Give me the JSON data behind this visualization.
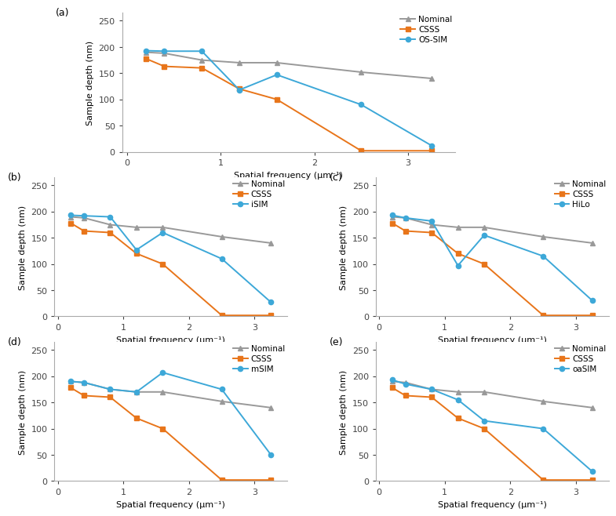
{
  "x": [
    0.2,
    0.4,
    0.8,
    1.2,
    1.6,
    2.5,
    3.25
  ],
  "nominal": [
    190,
    188,
    175,
    170,
    170,
    152,
    140
  ],
  "csss": [
    178,
    163,
    160,
    120,
    100,
    2,
    2
  ],
  "os_sim": [
    193,
    192,
    192,
    118,
    147,
    90,
    12
  ],
  "isim": [
    193,
    192,
    190,
    127,
    160,
    110,
    27
  ],
  "hilo": [
    193,
    188,
    182,
    97,
    155,
    115,
    30
  ],
  "msim": [
    190,
    188,
    175,
    170,
    207,
    175,
    50
  ],
  "oasim": [
    193,
    185,
    175,
    155,
    115,
    100,
    18
  ],
  "nominal_color": "#999999",
  "csss_color": "#E8751A",
  "blue_color": "#3DA8D8",
  "marker_nominal": "^",
  "marker_csss": "s",
  "marker_blue": "o",
  "ylabel": "Sample depth (nm)",
  "xlabel": "Spatial frequency (μm⁻¹)",
  "ylim": [
    0,
    265
  ],
  "xlim": [
    -0.05,
    3.5
  ],
  "yticks": [
    0,
    50,
    100,
    150,
    200,
    250
  ],
  "xticks": [
    0,
    1,
    2,
    3
  ],
  "subplot_labels": [
    "(a)",
    "(b)",
    "(c)",
    "(d)",
    "(e)"
  ],
  "method_labels": [
    "OS-SIM",
    "iSIM",
    "HiLo",
    "mSIM",
    "oaSIM"
  ],
  "label_fontsize": 8,
  "tick_fontsize": 8,
  "legend_fontsize": 7.5,
  "subplot_label_fontsize": 9,
  "linewidth": 1.4,
  "markersize": 4.5
}
